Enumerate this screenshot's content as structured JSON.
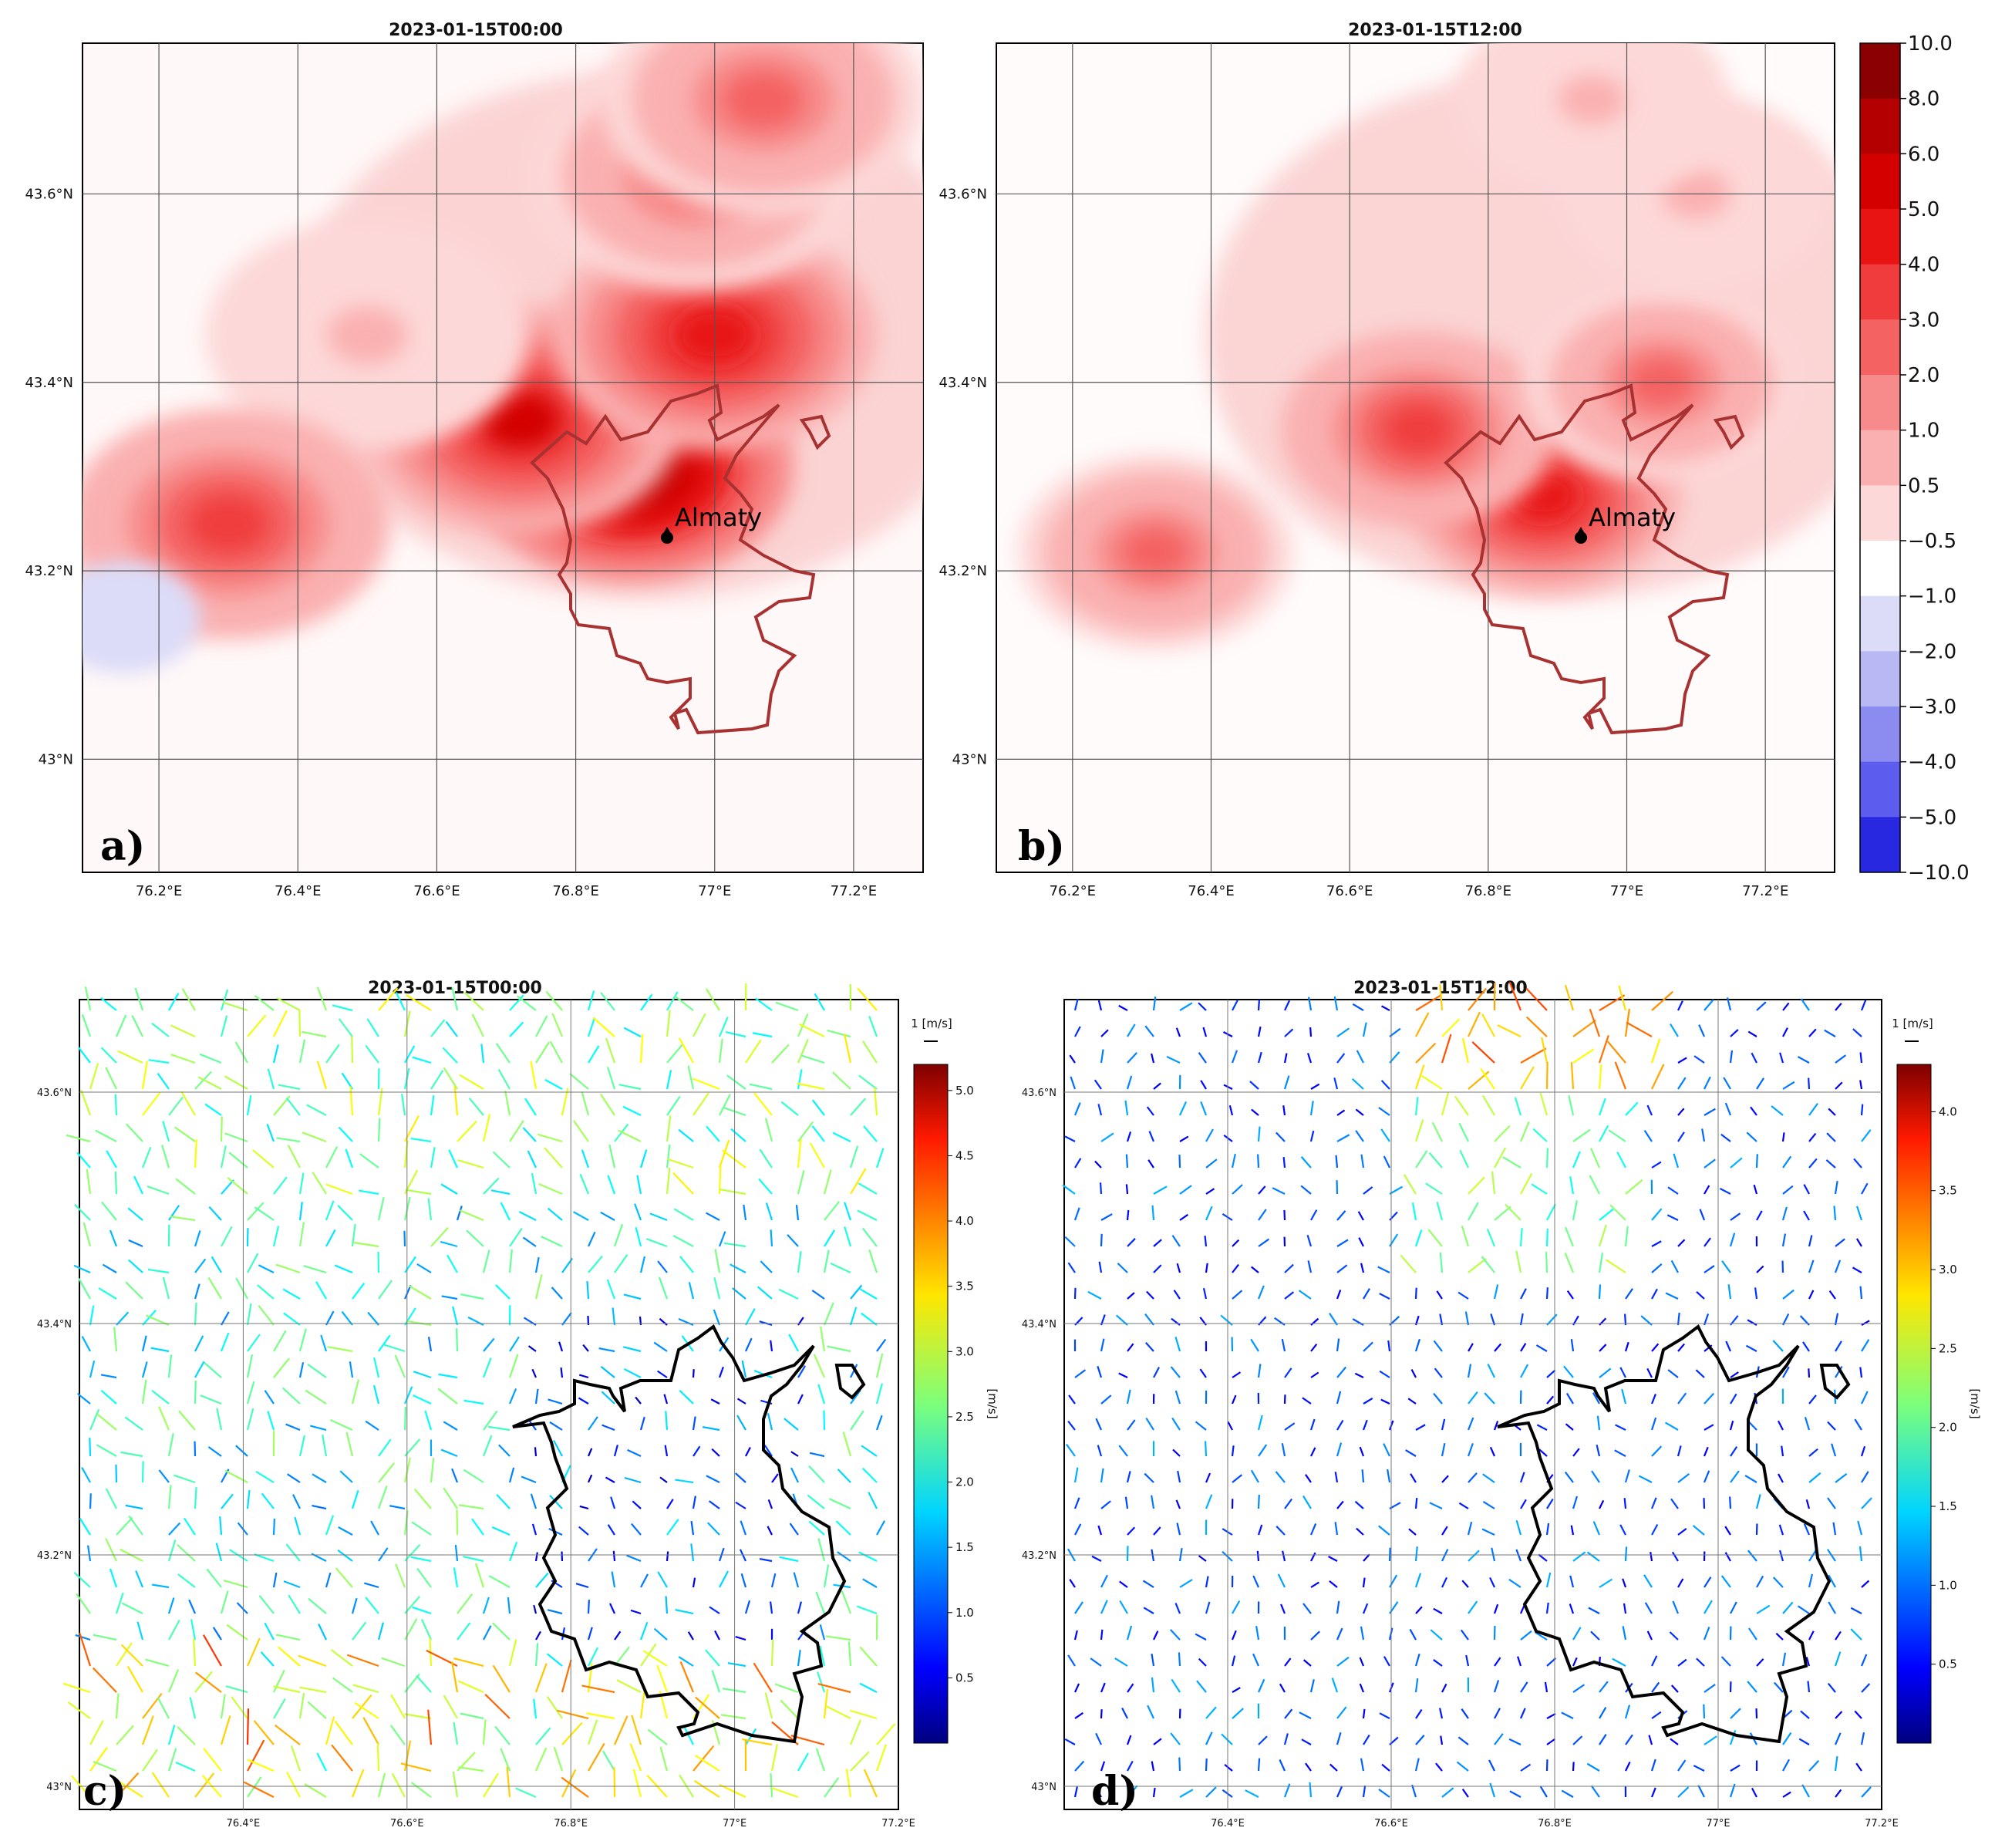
{
  "panels": [
    {
      "id": "a",
      "kind": "anomaly",
      "title": "2023-01-15T00:00",
      "label": "a)",
      "city_label": "Almaty",
      "x_ticks": [
        "76.2°E",
        "76.4°E",
        "76.6°E",
        "76.8°E",
        "77°E",
        "77.2°E"
      ],
      "y_ticks": [
        "43.6°N",
        "43.4°N",
        "43.2°N",
        "43°N"
      ]
    },
    {
      "id": "b",
      "kind": "anomaly",
      "title": "2023-01-15T12:00",
      "label": "b)",
      "city_label": "Almaty",
      "x_ticks": [
        "76.2°E",
        "76.4°E",
        "76.6°E",
        "76.8°E",
        "77°E",
        "77.2°E"
      ],
      "y_ticks": [
        "43.6°N",
        "43.4°N",
        "43.2°N",
        "43°N"
      ]
    },
    {
      "id": "c",
      "kind": "wind",
      "title": "2023-01-15T00:00",
      "label": "c)",
      "x_ticks": [
        "76.4°E",
        "76.6°E",
        "76.8°E",
        "77°E",
        "77.2°E"
      ],
      "y_ticks": [
        "43.6°N",
        "43.4°N",
        "43.2°N",
        "43°N"
      ],
      "quiver_key": "1 [m/s]"
    },
    {
      "id": "d",
      "kind": "wind",
      "title": "2023-01-15T12:00",
      "label": "d)",
      "x_ticks": [
        "76.4°E",
        "76.6°E",
        "76.8°E",
        "77°E",
        "77.2°E"
      ],
      "y_ticks": [
        "43.6°N",
        "43.4°N",
        "43.2°N",
        "43°N"
      ],
      "quiver_key": "1 [m/s]"
    }
  ],
  "colorbar_anomaly": {
    "ticks": [
      "10.0",
      "8.0",
      "6.0",
      "5.0",
      "4.0",
      "3.0",
      "2.0",
      "1.0",
      "0.5",
      "−0.5",
      "−1.0",
      "−2.0",
      "−3.0",
      "−4.0",
      "−5.0",
      "−10.0"
    ],
    "colors": [
      "#8b0000",
      "#b40000",
      "#d40000",
      "#e81414",
      "#f03c3c",
      "#f46262",
      "#f78a8a",
      "#fab0b0",
      "#fdd8d8",
      "#ffffff",
      "#dcdcf8",
      "#b8b8f4",
      "#8c8cf0",
      "#5c5cee",
      "#2828e0",
      "#0000a8"
    ]
  },
  "colorbar_wind_c": {
    "ticks": [
      "5.0",
      "4.5",
      "4.0",
      "3.5",
      "3.0",
      "2.5",
      "2.0",
      "1.5",
      "1.0",
      "0.5"
    ],
    "unit": "[m/s]"
  },
  "colorbar_wind_d": {
    "ticks": [
      "4.0",
      "3.5",
      "3.0",
      "2.5",
      "2.0",
      "1.5",
      "1.0",
      "0.5"
    ],
    "unit": "[m/s]"
  },
  "chart_data": [
    {
      "type": "heatmap",
      "panel": "a",
      "title": "2023-01-15T00:00",
      "xlim": [
        76.09,
        77.3
      ],
      "ylim": [
        42.88,
        43.76
      ],
      "x_ticks": [
        76.2,
        76.4,
        76.6,
        76.8,
        77.0,
        77.2
      ],
      "y_ticks": [
        43.0,
        43.2,
        43.4,
        43.6
      ],
      "levels": [
        -10,
        -5,
        -4,
        -3,
        -2,
        -1,
        -0.5,
        0.5,
        1,
        2,
        3,
        4,
        5,
        6,
        8,
        10
      ],
      "annotation": "Almaty",
      "marker": {
        "lon": 76.93,
        "lat": 43.24
      },
      "blobs": [
        {
          "lon": 76.88,
          "lat": 43.31,
          "value": 8.0
        },
        {
          "lon": 76.72,
          "lat": 43.36,
          "value": 6.0
        },
        {
          "lon": 77.0,
          "lat": 43.45,
          "value": 5.0
        },
        {
          "lon": 76.97,
          "lat": 43.62,
          "value": 3.0
        },
        {
          "lon": 77.07,
          "lat": 43.7,
          "value": 3.0
        },
        {
          "lon": 76.5,
          "lat": 43.45,
          "value": 1.0
        },
        {
          "lon": 76.3,
          "lat": 43.25,
          "value": 4.0
        },
        {
          "lon": 76.15,
          "lat": 43.15,
          "value": -1.0
        }
      ]
    },
    {
      "type": "heatmap",
      "panel": "b",
      "title": "2023-01-15T12:00",
      "xlim": [
        76.09,
        77.3
      ],
      "ylim": [
        42.88,
        43.76
      ],
      "x_ticks": [
        76.2,
        76.4,
        76.6,
        76.8,
        77.0,
        77.2
      ],
      "y_ticks": [
        43.0,
        43.2,
        43.4,
        43.6
      ],
      "levels": [
        -10,
        -5,
        -4,
        -3,
        -2,
        -1,
        -0.5,
        0.5,
        1,
        2,
        3,
        4,
        5,
        6,
        8,
        10
      ],
      "annotation": "Almaty",
      "marker": {
        "lon": 76.93,
        "lat": 43.24
      },
      "blobs": [
        {
          "lon": 76.88,
          "lat": 43.28,
          "value": 5.0
        },
        {
          "lon": 76.7,
          "lat": 43.35,
          "value": 4.0
        },
        {
          "lon": 77.05,
          "lat": 43.4,
          "value": 3.0
        },
        {
          "lon": 76.32,
          "lat": 43.22,
          "value": 3.0
        },
        {
          "lon": 77.1,
          "lat": 43.6,
          "value": 1.0
        },
        {
          "lon": 76.95,
          "lat": 43.7,
          "value": 1.0
        }
      ]
    },
    {
      "type": "scatter",
      "panel": "c",
      "title": "2023-01-15T00:00",
      "description_of_values": "wind speed m/s",
      "xlim": [
        76.2,
        77.2
      ],
      "ylim": [
        42.98,
        43.68
      ],
      "speed_range": [
        0.0,
        5.2
      ],
      "x_ticks": [
        76.4,
        76.6,
        76.8,
        77.0,
        77.2
      ],
      "y_ticks": [
        43.0,
        43.2,
        43.4,
        43.6
      ]
    },
    {
      "type": "scatter",
      "panel": "d",
      "title": "2023-01-15T12:00",
      "xlim": [
        76.2,
        77.2
      ],
      "ylim": [
        42.98,
        43.68
      ],
      "speed_range": [
        0.0,
        4.3
      ],
      "x_ticks": [
        76.4,
        76.6,
        76.8,
        77.0,
        77.2
      ],
      "y_ticks": [
        43.0,
        43.2,
        43.4,
        43.6
      ]
    }
  ]
}
